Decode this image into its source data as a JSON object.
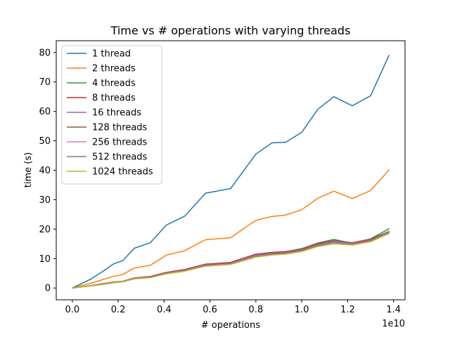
{
  "chart_data": {
    "type": "line",
    "title": "Time vs # operations with varying threads",
    "xlabel": "# operations",
    "ylabel": "time (s)",
    "x_offset_text": "1e10",
    "xlim": [
      -0.07,
      1.45
    ],
    "ylim": [
      -4,
      84
    ],
    "xticks": [
      0.0,
      0.2,
      0.4,
      0.6,
      0.8,
      1.0,
      1.2,
      1.4
    ],
    "xtick_labels": [
      "0.0",
      "0.2",
      "0.4",
      "0.6",
      "0.8",
      "1.0",
      "1.2",
      "1.4"
    ],
    "yticks": [
      0,
      10,
      20,
      30,
      40,
      50,
      60,
      70,
      80
    ],
    "ytick_labels": [
      "0",
      "10",
      "20",
      "30",
      "40",
      "50",
      "60",
      "70",
      "80"
    ],
    "grid": false,
    "legend_position": "top-left",
    "x": [
      0.0,
      0.08,
      0.13,
      0.18,
      0.22,
      0.27,
      0.34,
      0.41,
      0.49,
      0.58,
      0.69,
      0.8,
      0.87,
      0.93,
      1.0,
      1.07,
      1.14,
      1.22,
      1.3,
      1.38
    ],
    "series": [
      {
        "name": "1 thread",
        "color": "#1f77b4",
        "values": [
          0.0,
          3.0,
          5.5,
          8.2,
          9.3,
          13.5,
          15.4,
          21.4,
          24.4,
          32.2,
          33.8,
          45.5,
          49.3,
          49.5,
          52.9,
          60.7,
          65.0,
          61.9,
          65.3,
          79.0
        ]
      },
      {
        "name": "2 threads",
        "color": "#ff7f0e",
        "values": [
          0.0,
          1.6,
          2.8,
          4.0,
          4.6,
          6.8,
          7.7,
          11.2,
          12.7,
          16.4,
          17.1,
          23.0,
          24.3,
          24.8,
          26.6,
          30.5,
          32.9,
          30.4,
          33.1,
          40.1
        ]
      },
      {
        "name": "4 threads",
        "color": "#2ca02c",
        "values": [
          0.0,
          0.8,
          1.4,
          2.0,
          2.3,
          3.4,
          3.9,
          5.3,
          6.2,
          8.0,
          8.6,
          11.4,
          12.0,
          12.3,
          13.4,
          15.3,
          16.5,
          15.2,
          16.7,
          20.1
        ]
      },
      {
        "name": "8 threads",
        "color": "#d62728",
        "values": [
          0.0,
          0.8,
          1.4,
          2.0,
          2.3,
          3.4,
          3.9,
          5.3,
          6.3,
          8.1,
          8.7,
          11.5,
          12.1,
          12.4,
          13.2,
          15.2,
          16.1,
          15.4,
          16.6,
          19.2
        ]
      },
      {
        "name": "16 threads",
        "color": "#9467bd",
        "values": [
          0.0,
          0.8,
          1.3,
          1.9,
          2.3,
          3.3,
          3.8,
          5.2,
          6.1,
          7.9,
          8.5,
          11.3,
          11.9,
          12.2,
          13.1,
          15.0,
          16.0,
          15.3,
          16.4,
          19.1
        ]
      },
      {
        "name": "128 threads",
        "color": "#8c564b",
        "values": [
          0.0,
          0.7,
          1.3,
          1.9,
          2.2,
          3.2,
          3.7,
          5.1,
          6.0,
          7.7,
          8.4,
          11.1,
          11.7,
          12.0,
          12.9,
          14.8,
          15.8,
          15.1,
          16.2,
          18.9
        ]
      },
      {
        "name": "256 threads",
        "color": "#e377c2",
        "values": [
          0.0,
          0.7,
          1.2,
          1.8,
          2.2,
          3.2,
          3.6,
          5.0,
          5.9,
          7.6,
          8.2,
          10.9,
          11.5,
          11.8,
          12.7,
          14.5,
          15.6,
          14.9,
          16.0,
          18.8
        ]
      },
      {
        "name": "512 threads",
        "color": "#7f7f7f",
        "values": [
          0.0,
          0.7,
          1.2,
          1.8,
          2.1,
          3.1,
          3.6,
          4.9,
          5.8,
          7.5,
          8.1,
          10.7,
          11.4,
          11.7,
          12.6,
          14.4,
          15.4,
          14.8,
          15.9,
          18.7
        ]
      },
      {
        "name": "1024 threads",
        "color": "#bcbd22",
        "values": [
          0.0,
          0.7,
          1.2,
          1.8,
          2.1,
          3.1,
          3.5,
          4.8,
          5.7,
          7.4,
          8.0,
          10.5,
          11.2,
          11.5,
          12.4,
          14.1,
          15.0,
          14.6,
          15.7,
          18.5
        ]
      }
    ]
  }
}
